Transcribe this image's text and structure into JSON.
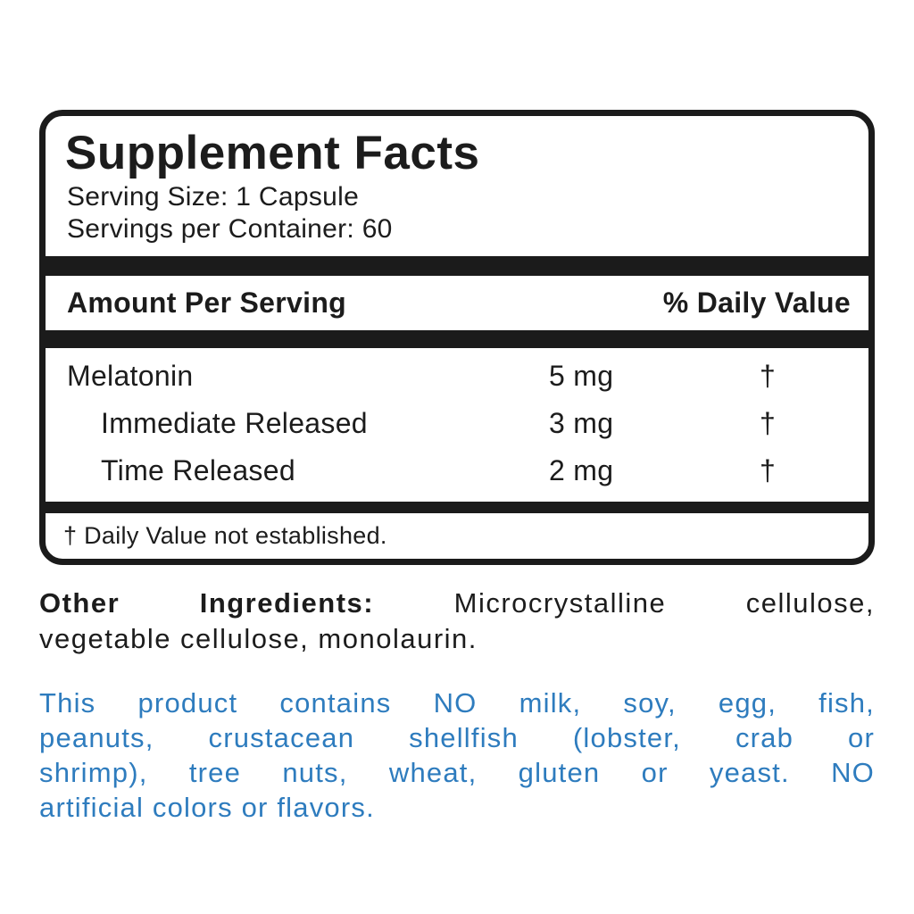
{
  "label": {
    "title": "Supplement Facts",
    "serving_size": "Serving Size: 1 Capsule",
    "servings_per_container": "Servings per Container: 60",
    "columns": {
      "amount": "Amount Per Serving",
      "daily_value": "% Daily Value"
    },
    "rows": [
      {
        "name": "Melatonin",
        "amount": "5 mg",
        "dv": "†",
        "indent": false
      },
      {
        "name": "Immediate Released",
        "amount": "3 mg",
        "dv": "†",
        "indent": true
      },
      {
        "name": "Time Released",
        "amount": "2 mg",
        "dv": "†",
        "indent": true
      }
    ],
    "footnote": "† Daily Value not established."
  },
  "other_ingredients": {
    "label": "Other Ingredients:",
    "line1_rest": " Microcrystalline cellulose,",
    "line2": "vegetable cellulose, monolaurin."
  },
  "allergen_notice": {
    "color": "#2e7cbe",
    "lines": [
      "This product contains NO milk, soy, egg, fish,",
      "peanuts, crustacean shellfish (lobster, crab or",
      "shrimp), tree nuts, wheat, gluten or yeast. NO",
      "artificial colors or flavors."
    ]
  },
  "colors": {
    "ink": "#1b1b1b",
    "background": "#ffffff",
    "accent_blue": "#2e7cbe"
  }
}
